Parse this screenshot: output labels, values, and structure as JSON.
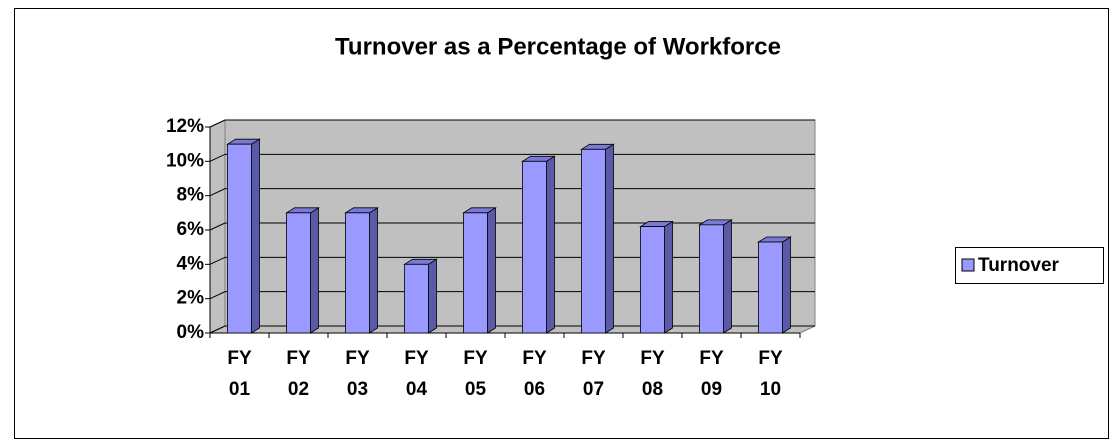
{
  "chart_data": {
    "type": "bar",
    "title": "Turnover as a Percentage of Workforce",
    "categories": [
      "FY 01",
      "FY 02",
      "FY 03",
      "FY 04",
      "FY 05",
      "FY 06",
      "FY 07",
      "FY 08",
      "FY 09",
      "FY 10"
    ],
    "series": [
      {
        "name": "Turnover",
        "color": "#9999ff",
        "values": [
          11,
          7,
          7,
          4,
          7,
          10,
          10.7,
          6.2,
          6.3,
          5.3
        ]
      }
    ],
    "ylim": [
      0,
      12
    ],
    "yticks": [
      {
        "value": 0,
        "label": "0%"
      },
      {
        "value": 2,
        "label": "2%"
      },
      {
        "value": 4,
        "label": "4%"
      },
      {
        "value": 6,
        "label": "6%"
      },
      {
        "value": 8,
        "label": "8%"
      },
      {
        "value": 10,
        "label": "10%"
      },
      {
        "value": 12,
        "label": "12%"
      }
    ],
    "grid": true,
    "legend": "right"
  }
}
